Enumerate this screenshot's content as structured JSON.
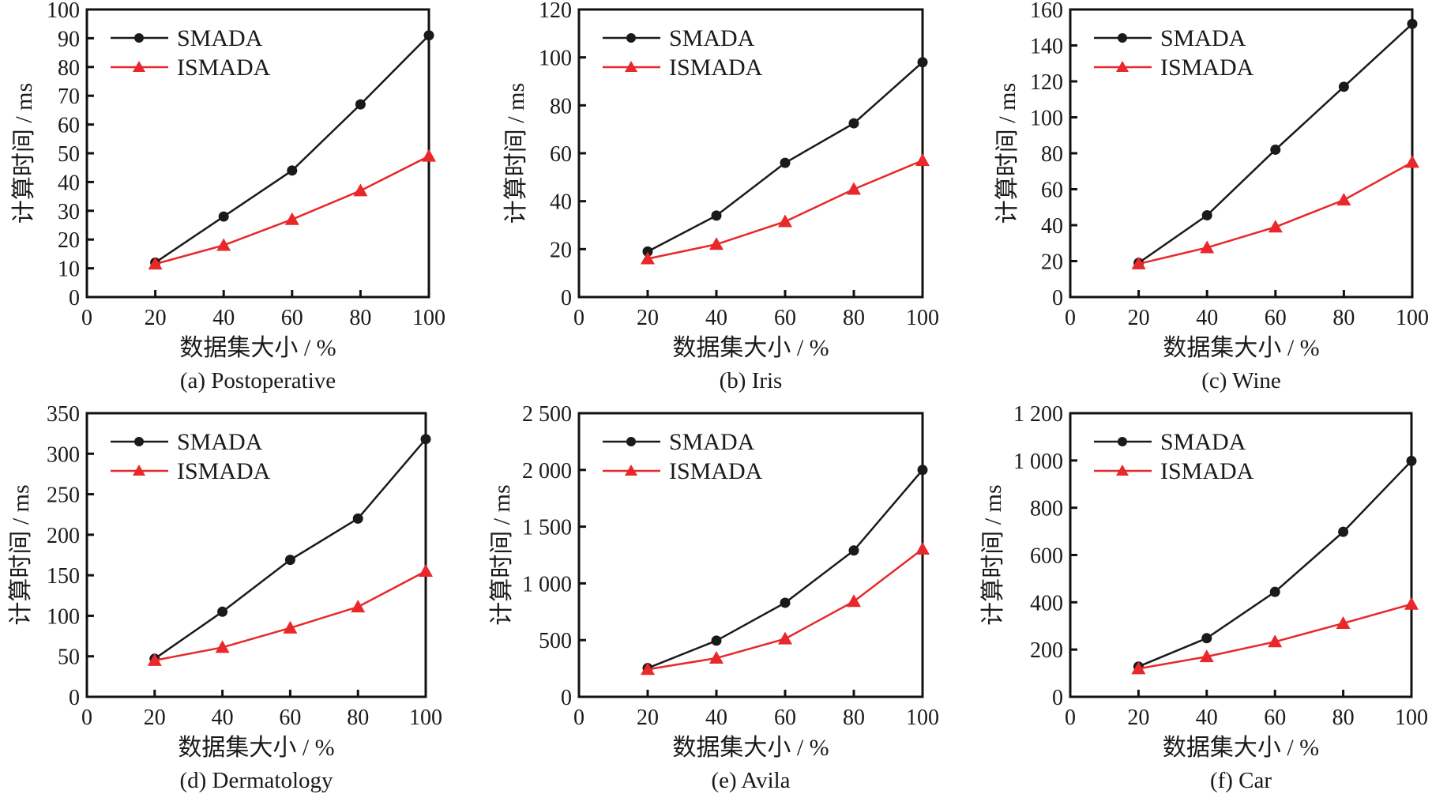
{
  "figure": {
    "panels_count": 6
  },
  "colors": {
    "smada": "#1a1a1a",
    "ismada": "#e8282a",
    "axis": "#111111"
  },
  "chart_data": [
    {
      "type": "line",
      "caption": "(a) Postoperative",
      "xlabel": "数据集大小 / %",
      "ylabel": "计算时间 / ms",
      "x": [
        20,
        40,
        60,
        80,
        100
      ],
      "xlim": [
        0,
        100
      ],
      "xticks": [
        0,
        20,
        40,
        60,
        80,
        100
      ],
      "xtick_labels": [
        "0",
        "20",
        "40",
        "60",
        "80",
        "100"
      ],
      "ylim": [
        0,
        100
      ],
      "yticks": [
        0,
        10,
        20,
        30,
        40,
        50,
        60,
        70,
        80,
        90,
        100
      ],
      "ytick_labels": [
        "0",
        "10",
        "20",
        "30",
        "40",
        "50",
        "60",
        "70",
        "80",
        "90",
        "100"
      ],
      "legend_position": "top-left",
      "grid": false,
      "series": [
        {
          "name": "SMADA",
          "marker": "circle",
          "values": [
            12,
            28,
            44,
            67,
            91
          ]
        },
        {
          "name": "ISMADA",
          "marker": "triangle",
          "values": [
            11.5,
            18,
            27,
            37,
            49
          ]
        }
      ]
    },
    {
      "type": "line",
      "caption": "(b) Iris",
      "xlabel": "数据集大小 / %",
      "ylabel": "计算时间 / ms",
      "x": [
        20,
        40,
        60,
        80,
        100
      ],
      "xlim": [
        0,
        100
      ],
      "xticks": [
        0,
        20,
        40,
        60,
        80,
        100
      ],
      "xtick_labels": [
        "0",
        "20",
        "40",
        "60",
        "80",
        "100"
      ],
      "ylim": [
        0,
        120
      ],
      "yticks": [
        0,
        20,
        40,
        60,
        80,
        100,
        120
      ],
      "ytick_labels": [
        "0",
        "20",
        "40",
        "60",
        "80",
        "100",
        "120"
      ],
      "legend_position": "top-left",
      "grid": false,
      "series": [
        {
          "name": "SMADA",
          "marker": "circle",
          "values": [
            19,
            34,
            56,
            72.5,
            98
          ]
        },
        {
          "name": "ISMADA",
          "marker": "triangle",
          "values": [
            16,
            22,
            31.5,
            45,
            57
          ]
        }
      ]
    },
    {
      "type": "line",
      "caption": "(c) Wine",
      "xlabel": "数据集大小 / %",
      "ylabel": "计算时间 / ms",
      "x": [
        20,
        40,
        60,
        80,
        100
      ],
      "xlim": [
        0,
        100
      ],
      "xticks": [
        0,
        20,
        40,
        60,
        80,
        100
      ],
      "xtick_labels": [
        "0",
        "20",
        "40",
        "60",
        "80",
        "100"
      ],
      "ylim": [
        0,
        160
      ],
      "yticks": [
        0,
        20,
        40,
        60,
        80,
        100,
        120,
        140,
        160
      ],
      "ytick_labels": [
        "0",
        "20",
        "40",
        "60",
        "80",
        "100",
        "120",
        "140",
        "160"
      ],
      "legend_position": "top-left",
      "grid": false,
      "series": [
        {
          "name": "SMADA",
          "marker": "circle",
          "values": [
            19,
            45.5,
            82,
            117,
            152
          ]
        },
        {
          "name": "ISMADA",
          "marker": "triangle",
          "values": [
            18.5,
            27.5,
            39,
            54,
            75
          ]
        }
      ]
    },
    {
      "type": "line",
      "caption": "(d) Dermatology",
      "xlabel": "数据集大小 / %",
      "ylabel": "计算时间 / ms",
      "x": [
        20,
        40,
        60,
        80,
        100
      ],
      "xlim": [
        0,
        100
      ],
      "xticks": [
        0,
        20,
        40,
        60,
        80,
        100
      ],
      "xtick_labels": [
        "0",
        "20",
        "40",
        "60",
        "80",
        "100"
      ],
      "ylim": [
        0,
        350
      ],
      "yticks": [
        0,
        50,
        100,
        150,
        200,
        250,
        300,
        350
      ],
      "ytick_labels": [
        "0",
        "50",
        "100",
        "150",
        "200",
        "250",
        "300",
        "350"
      ],
      "legend_position": "top-left",
      "grid": false,
      "series": [
        {
          "name": "SMADA",
          "marker": "circle",
          "values": [
            47,
            105,
            169,
            220,
            318
          ]
        },
        {
          "name": "ISMADA",
          "marker": "triangle",
          "values": [
            45,
            61,
            85,
            111,
            155
          ]
        }
      ]
    },
    {
      "type": "line",
      "caption": "(e) Avila",
      "xlabel": "数据集大小 / %",
      "ylabel": "计算时间 / ms",
      "x": [
        20,
        40,
        60,
        80,
        100
      ],
      "xlim": [
        0,
        100
      ],
      "xticks": [
        0,
        20,
        40,
        60,
        80,
        100
      ],
      "xtick_labels": [
        "0",
        "20",
        "40",
        "60",
        "80",
        "100"
      ],
      "ylim": [
        0,
        2500
      ],
      "yticks": [
        0,
        500,
        1000,
        1500,
        2000,
        2500
      ],
      "ytick_labels": [
        "0",
        "500",
        "1 000",
        "1 500",
        "2 000",
        "2 500"
      ],
      "legend_position": "top-left",
      "grid": false,
      "series": [
        {
          "name": "SMADA",
          "marker": "circle",
          "values": [
            253,
            495,
            829,
            1290,
            2000
          ]
        },
        {
          "name": "ISMADA",
          "marker": "triangle",
          "values": [
            242,
            341,
            511,
            841,
            1302
          ]
        }
      ]
    },
    {
      "type": "line",
      "caption": "(f) Car",
      "xlabel": "数据集大小 / %",
      "ylabel": "计算时间 / ms",
      "x": [
        20,
        40,
        60,
        80,
        100
      ],
      "xlim": [
        0,
        100
      ],
      "xticks": [
        0,
        20,
        40,
        60,
        80,
        100
      ],
      "xtick_labels": [
        "0",
        "20",
        "40",
        "60",
        "80",
        "100"
      ],
      "ylim": [
        0,
        1200
      ],
      "yticks": [
        0,
        200,
        400,
        600,
        800,
        1000,
        1200
      ],
      "ytick_labels": [
        "0",
        "200",
        "400",
        "600",
        "800",
        "1 000",
        "1 200"
      ],
      "legend_position": "top-left",
      "grid": false,
      "series": [
        {
          "name": "SMADA",
          "marker": "circle",
          "values": [
            128,
            248,
            444,
            698,
            998
          ]
        },
        {
          "name": "ISMADA",
          "marker": "triangle",
          "values": [
            119,
            170,
            233,
            311,
            392
          ]
        }
      ]
    }
  ]
}
